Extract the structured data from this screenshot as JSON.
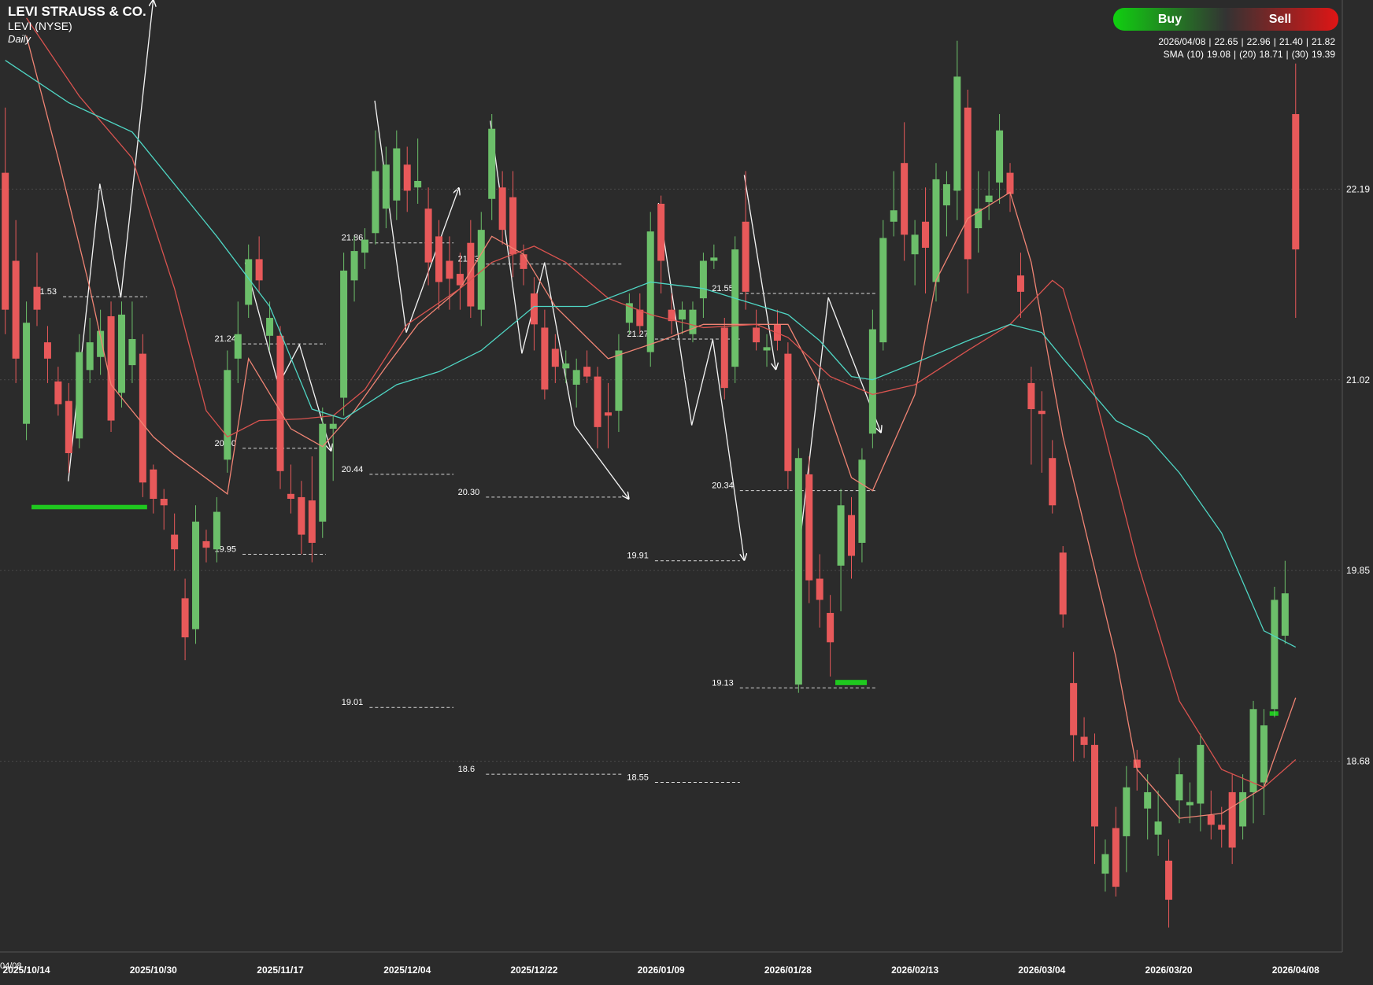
{
  "chart_data": {
    "type": "candlestick",
    "title": "LEVI STRAUSS & CO.",
    "subtitle": "LEVI (NYSE)",
    "interval": "Daily",
    "buttons": [
      "Buy",
      "Sell"
    ],
    "info": {
      "date": "2026/04/08",
      "separator": "|",
      "ohlc": [
        22.65,
        22.96,
        {
          "value": 21.4,
          "label": "21.40"
        },
        21.82
      ],
      "sma_label": "SMA"
    },
    "clipped_label": "04/08",
    "categories": [
      null,
      null,
      "2025/10/14",
      null,
      null,
      null,
      null,
      null,
      null,
      null,
      null,
      null,
      null,
      null,
      "2025/10/30",
      null,
      null,
      null,
      null,
      null,
      null,
      null,
      null,
      null,
      null,
      null,
      "2025/11/17",
      null,
      null,
      null,
      null,
      null,
      null,
      null,
      null,
      null,
      null,
      null,
      "2025/12/04",
      null,
      null,
      null,
      null,
      null,
      null,
      null,
      null,
      null,
      null,
      null,
      "2025/12/22",
      null,
      null,
      null,
      null,
      null,
      null,
      null,
      null,
      null,
      null,
      null,
      "2026/01/09",
      null,
      null,
      null,
      null,
      null,
      null,
      null,
      null,
      null,
      null,
      null,
      "2026/01/28",
      null,
      null,
      null,
      null,
      null,
      null,
      null,
      null,
      null,
      null,
      null,
      "2026/02/13",
      null,
      null,
      null,
      null,
      null,
      null,
      null,
      null,
      null,
      null,
      null,
      "2026/03/04",
      null,
      null,
      null,
      null,
      null,
      null,
      null,
      null,
      null,
      null,
      null,
      "2026/03/20",
      null,
      null,
      null,
      null,
      null,
      null,
      null,
      null,
      null,
      null,
      null,
      "2026/04/08"
    ],
    "open": [
      22.29,
      21.75,
      20.75,
      21.59,
      21.25,
      21.01,
      20.89,
      20.66,
      21.08,
      21.16,
      21.41,
      20.94,
      21.11,
      21.18,
      20.47,
      20.29,
      20.07,
      19.68,
      19.49,
      20.03,
      19.98,
      20.53,
      21.15,
      21.48,
      21.76,
      21.29,
      21.29,
      20.32,
      20.3,
      20.28,
      20.15,
      20.72,
      20.91,
      21.63,
      21.8,
      21.92,
      22.07,
      22.12,
      22.34,
      22.2,
      22.07,
      21.9,
      21.75,
      21.67,
      21.86,
      21.45,
      22.13,
      22.2,
      22.14,
      21.79,
      21.55,
      21.34,
      21.21,
      21.09,
      20.99,
      21.1,
      21.04,
      20.82,
      20.83,
      21.37,
      21.45,
      21.19,
      22.1,
      21.45,
      21.39,
      21.3,
      21.52,
      21.75,
      21.34,
      21.1,
      21.99,
      21.34,
      21.2,
      21.36,
      21.18,
      19.15,
      20.44,
      19.8,
      19.59,
      19.88,
      20.19,
      20.02,
      20.69,
      21.25,
      21.99,
      22.35,
      21.79,
      21.99,
      21.62,
      22.09,
      22.18,
      22.69,
      21.95,
      22.11,
      22.23,
      22.29,
      21.66,
      21.0,
      20.83,
      20.54,
      19.96,
      19.16,
      18.83,
      18.78,
      17.99,
      18.27,
      18.22,
      18.69,
      18.39,
      18.23,
      18.07,
      18.44,
      18.41,
      18.42,
      18.35,
      18.29,
      18.49,
      18.28,
      18.49,
      18.55,
      19.0,
      19.45,
      22.65
    ],
    "high": [
      22.69,
      22.0,
      21.5,
      21.8,
      21.35,
      21.1,
      21.0,
      21.3,
      21.4,
      21.45,
      21.5,
      21.5,
      21.5,
      21.3,
      20.5,
      20.35,
      20.2,
      19.8,
      20.25,
      20.1,
      20.3,
      21.2,
      21.5,
      21.85,
      21.9,
      21.5,
      21.35,
      20.5,
      20.4,
      20.55,
      20.85,
      20.8,
      21.8,
      21.9,
      21.95,
      22.55,
      22.45,
      22.55,
      22.45,
      22.5,
      22.2,
      22.0,
      21.9,
      21.8,
      22.0,
      22.05,
      22.65,
      22.3,
      22.3,
      21.85,
      21.65,
      21.45,
      21.3,
      21.2,
      21.15,
      21.2,
      21.1,
      21.0,
      21.3,
      21.55,
      21.55,
      22.05,
      22.15,
      21.55,
      21.5,
      21.5,
      21.8,
      21.85,
      21.4,
      21.9,
      22.3,
      21.45,
      21.3,
      21.45,
      21.25,
      20.6,
      20.55,
      19.95,
      19.7,
      20.35,
      20.3,
      20.6,
      21.45,
      22.0,
      22.3,
      22.6,
      22.0,
      22.2,
      22.35,
      22.3,
      23.1,
      22.8,
      22.3,
      22.3,
      22.65,
      22.35,
      21.8,
      21.1,
      20.95,
      20.65,
      20.0,
      19.35,
      18.95,
      18.85,
      18.2,
      18.4,
      18.65,
      18.75,
      18.6,
      18.5,
      18.2,
      18.7,
      18.55,
      18.85,
      18.5,
      18.4,
      18.6,
      18.6,
      19.05,
      19.0,
      19.75,
      19.91,
      22.96
    ],
    "low": [
      21.3,
      21.0,
      20.65,
      21.35,
      21.0,
      20.8,
      20.45,
      20.6,
      21.0,
      21.05,
      20.7,
      20.85,
      21.0,
      20.3,
      20.2,
      20.1,
      19.85,
      19.3,
      19.4,
      19.9,
      19.9,
      20.45,
      21.0,
      21.4,
      21.55,
      21.2,
      20.35,
      20.2,
      19.95,
      19.9,
      20.05,
      20.4,
      20.8,
      21.5,
      21.7,
      21.85,
      21.95,
      22.0,
      22.05,
      22.1,
      21.6,
      21.45,
      21.45,
      21.45,
      21.4,
      21.35,
      22.0,
      21.85,
      21.65,
      21.6,
      21.2,
      20.9,
      21.0,
      21.0,
      20.85,
      21.0,
      20.6,
      20.6,
      20.7,
      21.3,
      21.3,
      21.1,
      21.55,
      21.3,
      21.3,
      21.25,
      21.4,
      21.7,
      20.9,
      21.0,
      21.45,
      21.2,
      21.1,
      21.2,
      20.35,
      19.1,
      19.65,
      19.5,
      19.2,
      19.6,
      19.8,
      19.9,
      20.6,
      21.2,
      21.9,
      21.75,
      21.6,
      21.55,
      21.5,
      21.9,
      22.0,
      21.55,
      21.8,
      22.0,
      22.1,
      22.05,
      21.4,
      20.5,
      20.45,
      20.2,
      19.5,
      18.68,
      18.7,
      18.05,
      17.88,
      17.85,
      18.0,
      18.5,
      18.2,
      18.1,
      17.66,
      18.3,
      18.3,
      18.25,
      18.2,
      18.15,
      18.05,
      18.2,
      18.3,
      18.35,
      18.95,
      19.4,
      21.4
    ],
    "close": [
      21.45,
      21.15,
      21.37,
      21.45,
      21.15,
      20.87,
      20.57,
      21.19,
      21.25,
      21.32,
      20.77,
      21.42,
      21.27,
      20.39,
      20.29,
      20.25,
      19.98,
      19.44,
      20.15,
      19.99,
      20.21,
      21.08,
      21.3,
      21.76,
      21.63,
      21.4,
      20.46,
      20.29,
      20.07,
      20.02,
      20.75,
      20.75,
      21.69,
      21.81,
      21.88,
      22.3,
      22.34,
      22.44,
      22.18,
      22.24,
      21.74,
      21.62,
      21.64,
      21.6,
      21.47,
      21.94,
      22.56,
      21.94,
      21.79,
      21.7,
      21.36,
      20.96,
      21.1,
      21.12,
      21.08,
      21.04,
      20.73,
      20.8,
      21.2,
      21.49,
      21.35,
      21.93,
      21.75,
      21.38,
      21.45,
      21.45,
      21.75,
      21.77,
      20.97,
      21.82,
      21.56,
      21.25,
      21.22,
      21.26,
      20.46,
      20.54,
      19.79,
      19.67,
      19.41,
      20.25,
      19.94,
      20.53,
      21.33,
      21.89,
      22.06,
      21.91,
      21.91,
      21.83,
      22.25,
      22.22,
      22.88,
      21.76,
      22.07,
      22.15,
      22.55,
      22.16,
      21.56,
      20.84,
      20.81,
      20.25,
      19.58,
      18.84,
      18.78,
      18.28,
      18.11,
      17.91,
      18.52,
      18.64,
      18.49,
      18.31,
      17.83,
      18.6,
      18.43,
      18.78,
      18.29,
      18.26,
      18.15,
      18.49,
      19.0,
      18.9,
      19.67,
      19.71,
      21.82
    ],
    "up_color": "#6cbf6a",
    "down_color": "#e8595a",
    "series": [
      {
        "name": "(10)",
        "last": 19.08,
        "color": "#f08474",
        "x": [
          2,
          5,
          8,
          10,
          14,
          16,
          21,
          23,
          27,
          30,
          33,
          36,
          39,
          43,
          46,
          49,
          52,
          57,
          62,
          66,
          70,
          74,
          77,
          80,
          82,
          86,
          88,
          91,
          95,
          97,
          100,
          105,
          107,
          111,
          115,
          119,
          122
        ],
        "values": [
          23.13,
          22.38,
          21.58,
          20.99,
          20.67,
          20.56,
          20.32,
          21.15,
          20.72,
          20.61,
          20.83,
          21.1,
          21.36,
          21.58,
          21.9,
          21.79,
          21.47,
          21.15,
          21.26,
          21.36,
          21.36,
          21.36,
          20.99,
          20.42,
          20.34,
          20.93,
          21.63,
          22.01,
          22.17,
          21.74,
          20.67,
          19.32,
          18.63,
          18.33,
          18.36,
          18.52,
          19.07
        ]
      },
      {
        "name": "(20)",
        "last": 18.71,
        "color": "#d9534f",
        "x": [
          2,
          7,
          12,
          16,
          19,
          21,
          24,
          28,
          31,
          34,
          38,
          43,
          46,
          50,
          53,
          57,
          61,
          66,
          71,
          74,
          78,
          82,
          86,
          91,
          95,
          99,
          100,
          103,
          107,
          111,
          115,
          119,
          122
        ],
        "values": [
          23.24,
          22.76,
          22.38,
          21.58,
          20.83,
          20.67,
          20.77,
          20.78,
          20.8,
          20.96,
          21.36,
          21.58,
          21.74,
          21.84,
          21.74,
          21.52,
          21.42,
          21.34,
          21.36,
          21.28,
          21.04,
          20.93,
          20.99,
          21.2,
          21.36,
          21.63,
          21.58,
          20.93,
          19.91,
          19.05,
          18.63,
          18.52,
          18.69
        ]
      },
      {
        "name": "(30)",
        "last": 19.39,
        "color": "#4fd6c4",
        "x": [
          0,
          6,
          12,
          20,
          25,
          29,
          32,
          37,
          41,
          45,
          50,
          55,
          61,
          66,
          70,
          74,
          77,
          80,
          82,
          87,
          91,
          95,
          98,
          100,
          105,
          108,
          111,
          115,
          119,
          122
        ],
        "values": [
          22.98,
          22.72,
          22.54,
          21.9,
          21.47,
          20.84,
          20.78,
          20.99,
          21.07,
          21.2,
          21.47,
          21.47,
          21.62,
          21.58,
          21.5,
          21.42,
          21.26,
          21.04,
          21.02,
          21.15,
          21.26,
          21.36,
          21.31,
          21.15,
          20.77,
          20.67,
          20.45,
          20.08,
          19.48,
          19.38
        ]
      }
    ],
    "levels": [
      21.53,
      21.24,
      {
        "value": 20.6,
        "label": "20.60"
      },
      19.95,
      21.86,
      20.44,
      19.01,
      21.73,
      {
        "value": 20.3,
        "label": "20.30"
      },
      18.6,
      21.27,
      19.91,
      18.55,
      21.55,
      20.34,
      19.13
    ],
    "ylim": [
      17.51,
      23.35
    ],
    "yticks": [
      22.19,
      21.02,
      19.85,
      18.68
    ],
    "grid": true
  }
}
